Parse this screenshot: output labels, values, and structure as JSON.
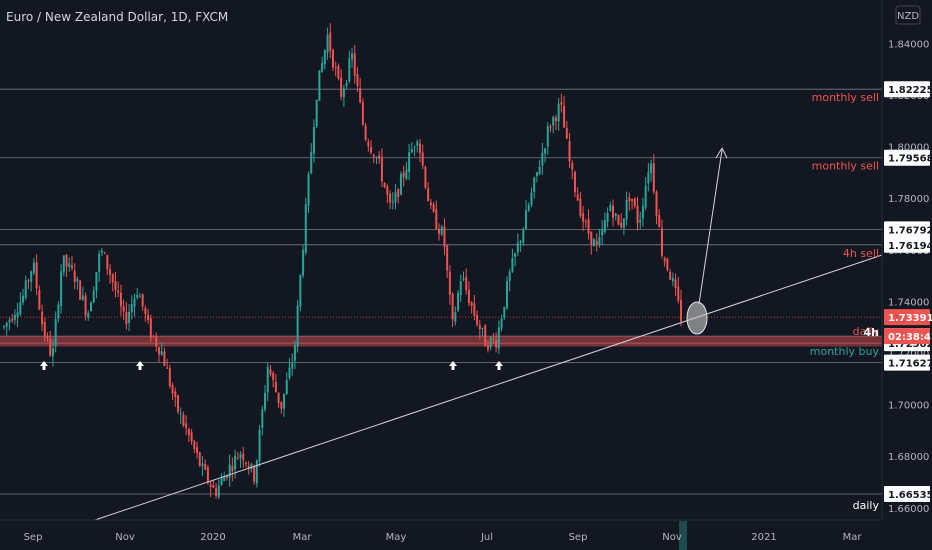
{
  "header": {
    "title": "Euro / New Zealand Dollar, 1D, FXCM",
    "currency_badge": "NZD"
  },
  "chart_data": {
    "type": "candlestick",
    "title": "Euro / New Zealand Dollar, 1D, FXCM",
    "currency": "NZD",
    "y_range": [
      1.652,
      1.847
    ],
    "y_ticks": [
      "1.66000",
      "1.68000",
      "1.70000",
      "1.72000",
      "1.74000",
      "1.76000",
      "1.78000",
      "1.80000",
      "1.82000",
      "1.84000"
    ],
    "x_ticks": [
      "Sep",
      "Nov",
      "2020",
      "Mar",
      "May",
      "Jul",
      "Sep",
      "Nov",
      "2021",
      "Mar"
    ],
    "price_path": [
      [
        0,
        1.73
      ],
      [
        0.022,
        1.742
      ],
      [
        0.033,
        1.755
      ],
      [
        0.044,
        1.73
      ],
      [
        0.055,
        1.718
      ],
      [
        0.066,
        1.756
      ],
      [
        0.08,
        1.75
      ],
      [
        0.095,
        1.735
      ],
      [
        0.11,
        1.76
      ],
      [
        0.122,
        1.75
      ],
      [
        0.137,
        1.732
      ],
      [
        0.152,
        1.745
      ],
      [
        0.165,
        1.729
      ],
      [
        0.18,
        1.72
      ],
      [
        0.195,
        1.7
      ],
      [
        0.21,
        1.688
      ],
      [
        0.225,
        1.675
      ],
      [
        0.24,
        1.666
      ],
      [
        0.255,
        1.675
      ],
      [
        0.27,
        1.682
      ],
      [
        0.285,
        1.672
      ],
      [
        0.3,
        1.715
      ],
      [
        0.315,
        1.699
      ],
      [
        0.33,
        1.72
      ],
      [
        0.342,
        1.77
      ],
      [
        0.355,
        1.82
      ],
      [
        0.368,
        1.843
      ],
      [
        0.383,
        1.82
      ],
      [
        0.396,
        1.835
      ],
      [
        0.41,
        1.805
      ],
      [
        0.425,
        1.795
      ],
      [
        0.44,
        1.775
      ],
      [
        0.455,
        1.79
      ],
      [
        0.47,
        1.805
      ],
      [
        0.485,
        1.775
      ],
      [
        0.5,
        1.765
      ],
      [
        0.51,
        1.73
      ],
      [
        0.52,
        1.75
      ],
      [
        0.535,
        1.735
      ],
      [
        0.548,
        1.724
      ],
      [
        0.56,
        1.725
      ],
      [
        0.575,
        1.75
      ],
      [
        0.59,
        1.768
      ],
      [
        0.605,
        1.788
      ],
      [
        0.62,
        1.808
      ],
      [
        0.633,
        1.816
      ],
      [
        0.645,
        1.79
      ],
      [
        0.66,
        1.77
      ],
      [
        0.675,
        1.76
      ],
      [
        0.69,
        1.778
      ],
      [
        0.7,
        1.768
      ],
      [
        0.712,
        1.782
      ],
      [
        0.722,
        1.77
      ],
      [
        0.735,
        1.796
      ],
      [
        0.748,
        1.76
      ],
      [
        0.76,
        1.748
      ],
      [
        0.77,
        1.7339
      ]
    ],
    "horizontal_levels": [
      {
        "price": "1.82225",
        "value": 1.82225,
        "annotation": "monthly sell",
        "color": "#ef5350"
      },
      {
        "price": "1.79568",
        "value": 1.79568,
        "annotation": "monthly sell",
        "color": "#ef5350"
      },
      {
        "price": "1.76792",
        "value": 1.76792,
        "annotation": "",
        "color": "#ef5350"
      },
      {
        "price": "1.76194",
        "value": 1.76194,
        "annotation": "4h sell",
        "color": "#ef5350"
      },
      {
        "price": "1.72653",
        "value": 1.72653,
        "annotation": "daily",
        "color": "#ef5350"
      },
      {
        "price": "1.72382",
        "value": 1.72382,
        "annotation": "monthly buy",
        "color": "#26a69a"
      },
      {
        "price": "1.71627",
        "value": 1.71627,
        "annotation": "",
        "color": "#ef5350"
      },
      {
        "price": "1.66535",
        "value": 1.66535,
        "annotation": "daily",
        "color": "#ef5350"
      }
    ],
    "current_price": "1.73391",
    "countdown": "02:38:41",
    "tag_4h": "4h",
    "up_arrow_markers": 4
  },
  "colors": {
    "background": "#131722",
    "bull": "#26a69a",
    "bear": "#ef5350",
    "grid": "#2a2e39",
    "axis_text": "#b2b5be",
    "level_line": "#787b86"
  }
}
